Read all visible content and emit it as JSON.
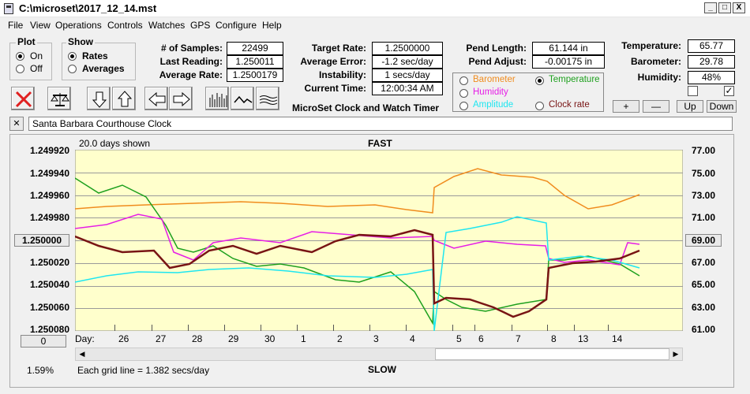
{
  "window": {
    "title": "C:\\microset\\2017_12_14.mst",
    "min": "_",
    "max": "□",
    "close": "X"
  },
  "menu": [
    "File",
    "View",
    "Operations",
    "Controls",
    "Watches",
    "GPS",
    "Configure",
    "Help"
  ],
  "plot": {
    "label": "Plot",
    "on": "On",
    "off": "Off"
  },
  "show": {
    "label": "Show",
    "rates": "Rates",
    "averages": "Averages"
  },
  "stats": {
    "samples_label": "# of Samples:",
    "samples": "22499",
    "last_label": "Last Reading:",
    "last": "1.250011",
    "avg_rate_label": "Average Rate:",
    "avg_rate": "1.2500179",
    "target_label": "Target Rate:",
    "target": "1.2500000",
    "avg_err_label": "Average Error:",
    "avg_err": "-1.2 sec/day",
    "instab_label": "Instability:",
    "instab": "1 secs/day",
    "time_label": "Current Time:",
    "time": "12:00:34 AM",
    "pend_len_label": "Pend Length:",
    "pend_len": "61.144 in",
    "pend_adj_label": "Pend Adjust:",
    "pend_adj": "-0.00175 in",
    "temp_label": "Temperature:",
    "temp": "65.77",
    "baro_label": "Barometer:",
    "baro": "29.78",
    "hum_label": "Humidity:",
    "hum": "48%"
  },
  "app_caption": "MicroSet Clock and Watch Timer",
  "selector": {
    "barometer": "Barometer",
    "temperature": "Temperature",
    "humidity": "Humidity",
    "amplitude": "Amplitude",
    "clock_rate": "Clock rate"
  },
  "small_buttons": {
    "plus": "+",
    "minus": "—",
    "up": "Up",
    "down": "Down"
  },
  "clock_name": "Santa Barbara Courthouse Clock",
  "clear_x": "✕",
  "chart": {
    "days_shown": "20.0 days shown",
    "fast": "FAST",
    "slow": "SLOW",
    "left_ticks": [
      "1.249920",
      "1.249940",
      "1.249960",
      "1.249980",
      "",
      "1.250020",
      "1.250040",
      "1.250060",
      "1.250080"
    ],
    "center_value": "1.250000",
    "right_ticks": [
      "77.00",
      "75.00",
      "73.00",
      "71.00",
      "",
      "67.00",
      "65.00",
      "63.00",
      "61.00"
    ],
    "right_center": "69.00",
    "day_label": "Day:",
    "days": [
      "26",
      "27",
      "28",
      "29",
      "30",
      "1",
      "2",
      "3",
      "4",
      "5",
      "6",
      "7",
      "8",
      "13",
      "14"
    ],
    "zero_btn": "0",
    "pct": "1.59%",
    "grid_note": "Each grid line = 1.382 secs/day"
  },
  "colors": {
    "plot_bg": "#ffffcc",
    "orange": "#f08c1e",
    "green": "#1ea01e",
    "magenta": "#e61ee6",
    "cyan": "#1ee6f0",
    "maroon": "#781414",
    "red_x": "#e02020"
  }
}
